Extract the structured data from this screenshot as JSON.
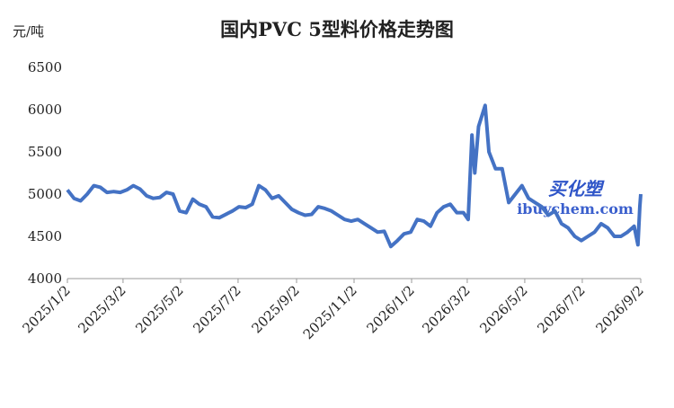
{
  "chart_data": {
    "type": "line",
    "title": "国内PVC 5型料价格走势图",
    "y_label": "元/吨",
    "watermark": "买化塑",
    "watermark_url": "ibuychem.com",
    "x": [
      "2025/1/2",
      "2025/1/9",
      "2025/1/16",
      "2025/1/23",
      "2025/1/30",
      "2025/2/6",
      "2025/2/13",
      "2025/2/20",
      "2025/2/27",
      "2025/3/6",
      "2025/3/13",
      "2025/3/20",
      "2025/3/27",
      "2025/4/3",
      "2025/4/10",
      "2025/4/17",
      "2025/4/24",
      "2025/5/1",
      "2025/5/8",
      "2025/5/15",
      "2025/5/22",
      "2025/5/29",
      "2025/6/5",
      "2025/6/12",
      "2025/6/19",
      "2025/6/26",
      "2025/7/3",
      "2025/7/10",
      "2025/7/17",
      "2025/7/24",
      "2025/7/31",
      "2025/8/7",
      "2025/8/14",
      "2025/8/21",
      "2025/8/28",
      "2025/9/4",
      "2025/9/11",
      "2025/9/18",
      "2025/9/25",
      "2025/10/2",
      "2025/10/9",
      "2025/10/16",
      "2025/10/23",
      "2025/10/30",
      "2025/11/6",
      "2025/11/13",
      "2025/11/20",
      "2025/11/27",
      "2025/12/4",
      "2025/12/11",
      "2025/12/18",
      "2025/12/25",
      "2026/1/1",
      "2026/1/8",
      "2026/1/15",
      "2026/1/22",
      "2026/1/29",
      "2026/2/5",
      "2026/2/12",
      "2026/2/19",
      "2026/2/26",
      "2026/3/3",
      "2026/3/7",
      "2026/3/10",
      "2026/3/14",
      "2026/3/21",
      "2026/3/25",
      "2026/4/1",
      "2026/4/8",
      "2026/4/15",
      "2026/4/22",
      "2026/4/29",
      "2026/5/6",
      "2026/5/13",
      "2026/5/20",
      "2026/5/27",
      "2026/6/3",
      "2026/6/10",
      "2026/6/17",
      "2026/6/24",
      "2026/7/1",
      "2026/7/8",
      "2026/7/15",
      "2026/7/22",
      "2026/7/29",
      "2026/8/5",
      "2026/8/12",
      "2026/8/19",
      "2026/8/26",
      "2026/8/30",
      "2026/9/1",
      "2026/9/2"
    ],
    "series": [
      {
        "color": "#4472c4",
        "values": [
          5050,
          4950,
          4920,
          5000,
          5100,
          5080,
          5020,
          5030,
          5020,
          5050,
          5100,
          5060,
          4980,
          4950,
          4960,
          5020,
          5000,
          4800,
          4780,
          4940,
          4880,
          4850,
          4730,
          4720,
          4760,
          4800,
          4850,
          4840,
          4880,
          5100,
          5050,
          4950,
          4980,
          4900,
          4820,
          4780,
          4750,
          4760,
          4850,
          4830,
          4800,
          4750,
          4700,
          4680,
          4700,
          4650,
          4600,
          4550,
          4560,
          4380,
          4450,
          4530,
          4550,
          4700,
          4680,
          4620,
          4780,
          4850,
          4880,
          4780,
          4780,
          4700,
          5700,
          5250,
          5800,
          6050,
          5500,
          5300,
          5300,
          4900,
          5000,
          5100,
          4950,
          4900,
          4850,
          4750,
          4800,
          4650,
          4600,
          4500,
          4450,
          4500,
          4550,
          4650,
          4600,
          4500,
          4500,
          4550,
          4620,
          4400,
          4850,
          5000
        ]
      }
    ],
    "ylim": [
      4000,
      6500
    ],
    "yticks": [
      4000,
      4500,
      5000,
      5500,
      6000,
      6500
    ],
    "xlim": [
      "2025/1/2",
      "2026/9/2"
    ],
    "xticks": [
      "2025/1/2",
      "2025/3/2",
      "2025/5/2",
      "2025/7/2",
      "2025/9/2",
      "2025/11/2",
      "2026/1/2",
      "2026/3/2",
      "2026/5/2",
      "2026/7/2",
      "2026/9/2"
    ]
  }
}
